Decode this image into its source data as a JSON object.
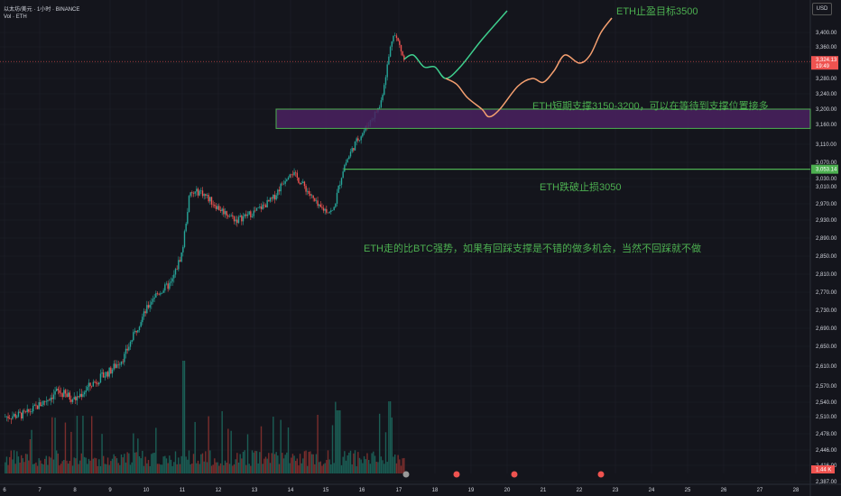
{
  "header": {
    "symbol": "以太坊/美元",
    "separator": "·",
    "interval": "1小时",
    "exchange": "BINANCE",
    "volume_label": "Vol",
    "volume_symbol": "ETH"
  },
  "currency_button": "USD",
  "colors": {
    "background": "#14151c",
    "up": "#26a69a",
    "down": "#ef5350",
    "projection_green": "#3ecf8e",
    "projection_orange": "#f5a070",
    "zone_fill": "#4a2160",
    "zone_border": "#4caf50",
    "annotation_text": "#4caf50",
    "grid": "#1e2029",
    "axis_text": "#d1d4dc"
  },
  "annotations": {
    "target": "ETH止盈目标3500",
    "support": "ETH短期支撑3150-3200，可以在等待到支撑位置接多",
    "stop": "ETH跌破止损3050",
    "comment": "ETH走的比BTC强势，如果有回踩支撑是不错的做多机会，当然不回踩就不做"
  },
  "chart_data": {
    "type": "candlestick",
    "xlabel": "",
    "ylabel": "",
    "x_ticks": [
      "6",
      "7",
      "8",
      "9",
      "10",
      "11",
      "12",
      "13",
      "14",
      "15",
      "16",
      "17",
      "18",
      "19",
      "20",
      "21",
      "22",
      "23",
      "24",
      "25",
      "26",
      "27",
      "28"
    ],
    "y_ticks": [
      3400,
      3360,
      3320,
      3280,
      3240,
      3200,
      3160,
      3110,
      3070,
      3030,
      3010,
      2970,
      2930,
      2890,
      2850,
      2810,
      2770,
      2730,
      2690,
      2650,
      2610,
      2570,
      2540,
      2510,
      2478,
      2446,
      2416,
      2387
    ],
    "ylim": [
      2380,
      3450
    ],
    "last_price": "3,324.13",
    "countdown": "19:49",
    "stop_price_tag": "3,053.14",
    "volume_tag": "1.44 K",
    "price_path": [
      {
        "day": 6.0,
        "price": 2510
      },
      {
        "day": 6.6,
        "price": 2515
      },
      {
        "day": 7.0,
        "price": 2535
      },
      {
        "day": 7.5,
        "price": 2560
      },
      {
        "day": 8.0,
        "price": 2545
      },
      {
        "day": 8.5,
        "price": 2575
      },
      {
        "day": 9.0,
        "price": 2600
      },
      {
        "day": 9.4,
        "price": 2630
      },
      {
        "day": 9.8,
        "price": 2700
      },
      {
        "day": 10.2,
        "price": 2760
      },
      {
        "day": 10.7,
        "price": 2790
      },
      {
        "day": 11.0,
        "price": 2860
      },
      {
        "day": 11.2,
        "price": 2990
      },
      {
        "day": 11.5,
        "price": 3000
      },
      {
        "day": 12.0,
        "price": 2960
      },
      {
        "day": 12.5,
        "price": 2930
      },
      {
        "day": 13.0,
        "price": 2950
      },
      {
        "day": 13.5,
        "price": 2980
      },
      {
        "day": 14.0,
        "price": 3050
      },
      {
        "day": 14.4,
        "price": 3010
      },
      {
        "day": 14.8,
        "price": 2960
      },
      {
        "day": 15.2,
        "price": 2950
      },
      {
        "day": 15.5,
        "price": 3060
      },
      {
        "day": 15.8,
        "price": 3110
      },
      {
        "day": 16.1,
        "price": 3150
      },
      {
        "day": 16.5,
        "price": 3210
      },
      {
        "day": 16.7,
        "price": 3320
      },
      {
        "day": 16.85,
        "price": 3400
      },
      {
        "day": 17.0,
        "price": 3370
      },
      {
        "day": 17.15,
        "price": 3324
      }
    ],
    "zone": {
      "label": "support",
      "low": 3150,
      "high": 3200,
      "start_day": 13.6
    },
    "stop_line": {
      "price": 3053,
      "start_day": 15.5
    },
    "projection_up": [
      {
        "day": 17.15,
        "price": 3330
      },
      {
        "day": 17.4,
        "price": 3340
      },
      {
        "day": 17.7,
        "price": 3310
      },
      {
        "day": 18.0,
        "price": 3310
      },
      {
        "day": 18.3,
        "price": 3280
      },
      {
        "day": 18.7,
        "price": 3310
      },
      {
        "day": 19.3,
        "price": 3380
      },
      {
        "day": 20.0,
        "price": 3460
      }
    ],
    "projection_down": [
      {
        "day": 18.3,
        "price": 3280
      },
      {
        "day": 18.6,
        "price": 3265
      },
      {
        "day": 18.9,
        "price": 3230
      },
      {
        "day": 19.3,
        "price": 3200
      },
      {
        "day": 19.5,
        "price": 3180
      },
      {
        "day": 19.8,
        "price": 3200
      },
      {
        "day": 20.3,
        "price": 3260
      },
      {
        "day": 20.7,
        "price": 3280
      },
      {
        "day": 21.0,
        "price": 3270
      },
      {
        "day": 21.3,
        "price": 3300
      },
      {
        "day": 21.6,
        "price": 3340
      },
      {
        "day": 22.0,
        "price": 3320
      },
      {
        "day": 22.3,
        "price": 3340
      },
      {
        "day": 22.6,
        "price": 3400
      },
      {
        "day": 22.9,
        "price": 3440
      }
    ]
  }
}
